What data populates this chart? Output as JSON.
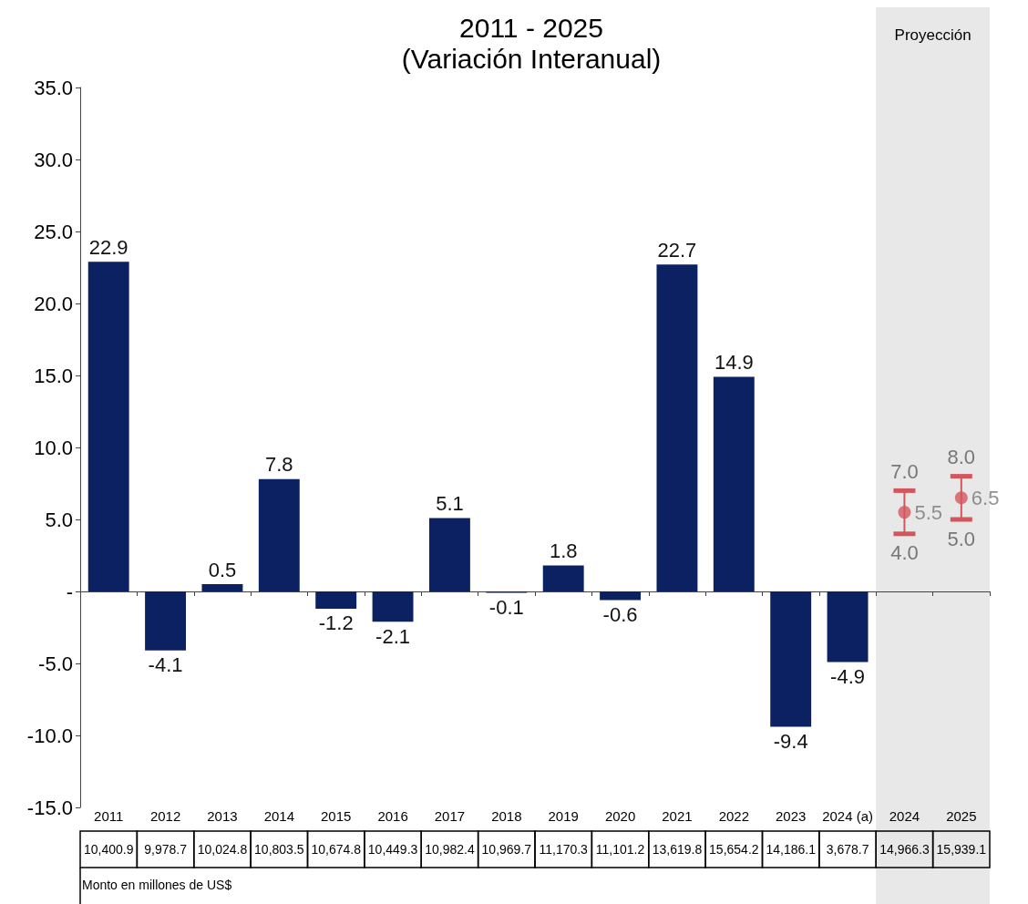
{
  "chart_data": {
    "type": "bar",
    "title": "2011 - 2025",
    "subtitle": "(Variación Interanual)",
    "categories": [
      "2011",
      "2012",
      "2013",
      "2014",
      "2015",
      "2016",
      "2017",
      "2018",
      "2019",
      "2020",
      "2021",
      "2022",
      "2023",
      "2024 (a)",
      "2024",
      "2025"
    ],
    "series": [
      {
        "color": "#0b2161",
        "values": [
          22.9,
          -4.1,
          0.5,
          7.8,
          -1.2,
          -2.1,
          5.1,
          -0.1,
          1.8,
          -0.6,
          22.7,
          14.9,
          -9.4,
          -4.9,
          null,
          null
        ]
      },
      {
        "type": "scatter",
        "color": "#d2575c",
        "values": [
          null,
          null,
          null,
          null,
          null,
          null,
          null,
          null,
          null,
          null,
          null,
          null,
          null,
          null,
          5.5,
          6.5
        ],
        "errors": [
          null,
          null,
          null,
          null,
          null,
          null,
          null,
          null,
          null,
          null,
          null,
          null,
          null,
          null,
          [
            4.0,
            7.0
          ],
          [
            5.0,
            8.0
          ]
        ],
        "value_labels": [
          null,
          null,
          null,
          null,
          null,
          null,
          null,
          null,
          null,
          null,
          null,
          null,
          null,
          null,
          "5.5",
          "6.5"
        ]
      }
    ],
    "data_labels": true,
    "ylim": [
      -15,
      35
    ],
    "yticks": [
      {
        "value": -15,
        "label": "-15.0"
      },
      {
        "value": -10,
        "label": "-10.0"
      },
      {
        "value": -5,
        "label": "-5.0"
      },
      {
        "value": 0,
        "label": "-"
      },
      {
        "value": 5,
        "label": "5.0"
      },
      {
        "value": 10,
        "label": "10.0"
      },
      {
        "value": 15,
        "label": "15.0"
      },
      {
        "value": 20,
        "label": "20.0"
      },
      {
        "value": 25,
        "label": "25.0"
      },
      {
        "value": 30,
        "label": "30.0"
      },
      {
        "value": 35,
        "label": "35.0"
      }
    ],
    "marker": "circle",
    "bands": [
      {
        "axis": "x",
        "from": "2024",
        "to": "2025",
        "label": "Proyección",
        "color": "#e8e8e8"
      }
    ],
    "annotations": [
      "10,400.9",
      "9,978.7",
      "10,024.8",
      "10,803.5",
      "10,674.8",
      "10,449.3",
      "10,982.4",
      "10,969.7",
      "11,170.3",
      "11,101.2",
      "13,619.8",
      "15,654.2",
      "14,186.1",
      "3,678.7",
      "14,966.3",
      "15,939.1",
      "Monto en millones de US$",
      {
        "text": "7.0",
        "x": "2024",
        "y": 7.0
      },
      {
        "text": "4.0",
        "x": "2024",
        "y": 4.0
      },
      {
        "text": "8.0",
        "x": "2025",
        "y": 8.0
      },
      {
        "text": "5.0",
        "x": "2025",
        "y": 5.0
      }
    ]
  }
}
